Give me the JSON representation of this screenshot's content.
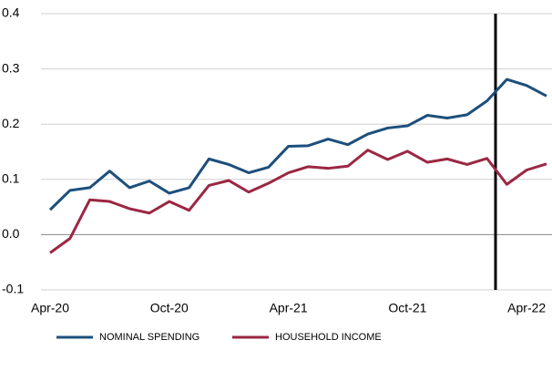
{
  "chart_data": {
    "type": "line",
    "categories": [
      "Apr-20",
      null,
      null,
      null,
      null,
      null,
      "Oct-20",
      null,
      null,
      null,
      null,
      null,
      "Apr-21",
      null,
      null,
      null,
      null,
      null,
      "Oct-21",
      null,
      null,
      null,
      null,
      null,
      "Apr-22",
      null
    ],
    "series": [
      {
        "name": "NOMINAL SPENDING",
        "color": "#1d4f7c",
        "values": [
          0.045,
          0.08,
          0.085,
          0.115,
          0.085,
          0.097,
          0.075,
          0.085,
          0.137,
          0.127,
          0.112,
          0.122,
          0.16,
          0.161,
          0.173,
          0.163,
          0.182,
          0.193,
          0.197,
          0.216,
          0.211,
          0.217,
          0.242,
          0.281,
          0.27,
          0.251
        ]
      },
      {
        "name": "HOUSEHOLD INCOME",
        "color": "#9b2743",
        "values": [
          -0.033,
          -0.007,
          0.063,
          0.06,
          0.047,
          0.039,
          0.06,
          0.044,
          0.089,
          0.098,
          0.077,
          0.093,
          0.112,
          0.123,
          0.12,
          0.124,
          0.153,
          0.136,
          0.151,
          0.131,
          0.137,
          0.127,
          0.138,
          0.091,
          0.117,
          0.128
        ]
      }
    ],
    "ylim": [
      -0.1,
      0.4
    ],
    "yticks": [
      {
        "value": -0.1,
        "label": "-0.1"
      },
      {
        "value": 0,
        "label": "0.0"
      },
      0.1,
      0.2,
      0.3,
      0.4
    ],
    "grid": true
  }
}
